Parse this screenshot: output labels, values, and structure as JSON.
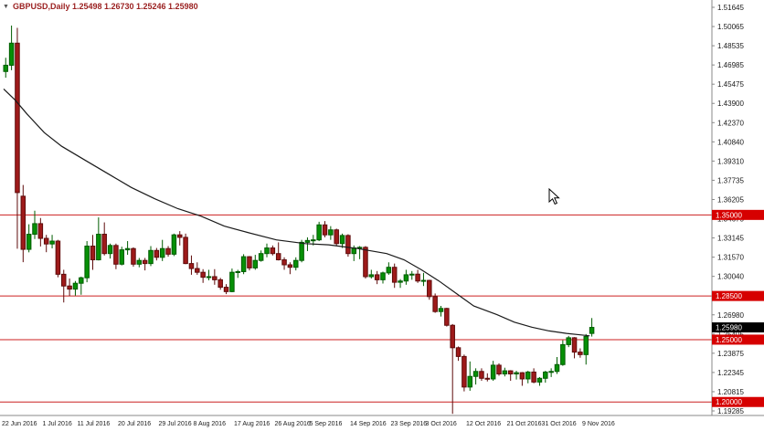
{
  "header": {
    "symbol_line": "GBPUSD,Daily 1.25498 1.26730 1.25246 1.25980",
    "symbol": "GBPUSD",
    "timeframe": "Daily",
    "open": "1.25498",
    "high": "1.26730",
    "low": "1.25246",
    "close": "1.25980"
  },
  "colors": {
    "background": "#ffffff",
    "up": "#005c00",
    "up_fill": "#069006",
    "down": "#5e0b0b",
    "down_fill": "#9e1a1a",
    "ma": "#1a1a1a",
    "level": "#cc2020",
    "level_tag_bg": "#d60000",
    "level_tag_text": "#ffffff",
    "current_tag_bg": "#000000",
    "current_tag_text": "#ffffff",
    "axis_text": "#1a1a1a",
    "separator": "#888888"
  },
  "chart_data": {
    "type": "candlestick",
    "title": "GBPUSD Daily",
    "symbol": "GBPUSD",
    "timeframe": "Daily",
    "grid": false,
    "legend": "none",
    "y_axis": {
      "top_price": 1.51645,
      "bottom_price": 1.19285,
      "labels": [
        "1.51645",
        "1.50065",
        "1.48535",
        "1.46985",
        "1.45475",
        "1.43900",
        "1.42370",
        "1.40840",
        "1.39310",
        "1.37735",
        "1.36205",
        "1.34675",
        "1.33145",
        "1.31570",
        "1.30040",
        "1.28510",
        "1.26980",
        "1.25405",
        "1.23875",
        "1.22345",
        "1.20815",
        "1.19285"
      ]
    },
    "x_axis": {
      "labels": [
        "22 Jun 2016",
        "1 Jul 2016",
        "11 Jul 2016",
        "20 Jul 2016",
        "29 Jul 2016",
        "8 Aug 2016",
        "17 Aug 2016",
        "26 Aug 2016",
        "5 Sep 2016",
        "14 Sep 2016",
        "23 Sep 2016",
        "3 Oct 2016",
        "12 Oct 2016",
        "21 Oct 2016",
        "31 Oct 2016",
        "9 Nov 2016"
      ],
      "indices": [
        0,
        7,
        13,
        20,
        27,
        33,
        40,
        47,
        53,
        60,
        67,
        73,
        80,
        87,
        93,
        100
      ]
    },
    "levels": [
      {
        "price": 1.35,
        "label": "1.35000"
      },
      {
        "price": 1.285,
        "label": "1.28500"
      },
      {
        "price": 1.25,
        "label": "1.25000"
      },
      {
        "price": 1.2,
        "label": "1.20000"
      }
    ],
    "current_price": {
      "price": 1.2598,
      "label": "1.25980"
    },
    "candles": [
      [
        "22 Jun",
        1.465,
        1.476,
        1.46,
        1.47
      ],
      [
        "23 Jun",
        1.47,
        1.5018,
        1.466,
        1.4877
      ],
      [
        "24 Jun",
        1.4877,
        1.5,
        1.3229,
        1.3679
      ],
      [
        "27 Jun",
        1.365,
        1.374,
        1.3121,
        1.3224
      ],
      [
        "28 Jun",
        1.3224,
        1.3425,
        1.32,
        1.3345
      ],
      [
        "29 Jun",
        1.3345,
        1.3534,
        1.3307,
        1.343
      ],
      [
        "30 Jun",
        1.343,
        1.3475,
        1.3247,
        1.3312
      ],
      [
        "1 Jul",
        1.3312,
        1.334,
        1.3201,
        1.3267
      ],
      [
        "4 Jul",
        1.3267,
        1.334,
        1.3232,
        1.329
      ],
      [
        "5 Jul",
        1.329,
        1.33,
        1.3,
        1.3024
      ],
      [
        "6 Jul",
        1.3024,
        1.306,
        1.2798,
        1.293
      ],
      [
        "7 Jul",
        1.293,
        1.299,
        1.285,
        1.2905
      ],
      [
        "8 Jul",
        1.2905,
        1.297,
        1.2853,
        1.2952
      ],
      [
        "11 Jul",
        1.2952,
        1.3005,
        1.286,
        1.2996
      ],
      [
        "12 Jul",
        1.2996,
        1.329,
        1.296,
        1.325
      ],
      [
        "13 Jul",
        1.325,
        1.334,
        1.306,
        1.314
      ],
      [
        "14 Jul",
        1.314,
        1.348,
        1.3135,
        1.3345
      ],
      [
        "15 Jul",
        1.3345,
        1.344,
        1.3175,
        1.319
      ],
      [
        "18 Jul",
        1.319,
        1.327,
        1.315,
        1.3255
      ],
      [
        "19 Jul",
        1.3255,
        1.327,
        1.3065,
        1.3105
      ],
      [
        "20 Jul",
        1.3105,
        1.3245,
        1.3095,
        1.322
      ],
      [
        "21 Jul",
        1.322,
        1.329,
        1.318,
        1.323
      ],
      [
        "22 Jul",
        1.323,
        1.324,
        1.3085,
        1.3105
      ],
      [
        "25 Jul",
        1.3105,
        1.3155,
        1.308,
        1.3135
      ],
      [
        "26 Jul",
        1.3135,
        1.3155,
        1.3055,
        1.311
      ],
      [
        "27 Jul",
        1.311,
        1.325,
        1.309,
        1.3215
      ],
      [
        "28 Jul",
        1.3215,
        1.3235,
        1.3135,
        1.316
      ],
      [
        "29 Jul",
        1.316,
        1.33,
        1.313,
        1.323
      ],
      [
        "1 Aug",
        1.323,
        1.325,
        1.3165,
        1.3185
      ],
      [
        "2 Aug",
        1.3185,
        1.335,
        1.317,
        1.334
      ],
      [
        "3 Aug",
        1.334,
        1.337,
        1.3255,
        1.332
      ],
      [
        "4 Aug",
        1.332,
        1.335,
        1.3105,
        1.311
      ],
      [
        "5 Aug",
        1.311,
        1.3175,
        1.302,
        1.307
      ],
      [
        "8 Aug",
        1.307,
        1.312,
        1.302,
        1.304
      ],
      [
        "9 Aug",
        1.304,
        1.3065,
        1.2955,
        1.3
      ],
      [
        "10 Aug",
        1.3,
        1.306,
        1.2975,
        1.3005
      ],
      [
        "11 Aug",
        1.3005,
        1.3065,
        1.294,
        1.298
      ],
      [
        "12 Aug",
        1.298,
        1.2995,
        1.29,
        1.292
      ],
      [
        "15 Aug",
        1.292,
        1.2945,
        1.2865,
        1.2885
      ],
      [
        "16 Aug",
        1.2885,
        1.307,
        1.288,
        1.304
      ],
      [
        "17 Aug",
        1.304,
        1.306,
        1.2995,
        1.3045
      ],
      [
        "18 Aug",
        1.3045,
        1.3185,
        1.3025,
        1.3165
      ],
      [
        "19 Aug",
        1.3165,
        1.317,
        1.3055,
        1.3075
      ],
      [
        "22 Aug",
        1.3075,
        1.318,
        1.306,
        1.3135
      ],
      [
        "23 Aug",
        1.3135,
        1.3215,
        1.3125,
        1.319
      ],
      [
        "24 Aug",
        1.319,
        1.327,
        1.316,
        1.3235
      ],
      [
        "25 Aug",
        1.3235,
        1.3255,
        1.3175,
        1.319
      ],
      [
        "26 Aug",
        1.319,
        1.328,
        1.3135,
        1.314
      ],
      [
        "29 Aug",
        1.314,
        1.316,
        1.306,
        1.31
      ],
      [
        "30 Aug",
        1.31,
        1.312,
        1.3025,
        1.308
      ],
      [
        "31 Aug",
        1.308,
        1.316,
        1.3055,
        1.3135
      ],
      [
        "1 Sep",
        1.3135,
        1.33,
        1.312,
        1.328
      ],
      [
        "2 Sep",
        1.328,
        1.332,
        1.321,
        1.3295
      ],
      [
        "5 Sep",
        1.3295,
        1.334,
        1.3255,
        1.33
      ],
      [
        "6 Sep",
        1.33,
        1.3445,
        1.329,
        1.342
      ],
      [
        "7 Sep",
        1.342,
        1.345,
        1.332,
        1.334
      ],
      [
        "8 Sep",
        1.334,
        1.341,
        1.33,
        1.338
      ],
      [
        "9 Sep",
        1.338,
        1.339,
        1.325,
        1.327
      ],
      [
        "12 Sep",
        1.327,
        1.335,
        1.3235,
        1.3335
      ],
      [
        "13 Sep",
        1.3335,
        1.3345,
        1.3165,
        1.319
      ],
      [
        "14 Sep",
        1.319,
        1.3255,
        1.313,
        1.3235
      ],
      [
        "15 Sep",
        1.3235,
        1.325,
        1.3145,
        1.324
      ],
      [
        "16 Sep",
        1.324,
        1.325,
        1.299,
        1.3005
      ],
      [
        "19 Sep",
        1.3005,
        1.306,
        1.299,
        1.302
      ],
      [
        "20 Sep",
        1.302,
        1.305,
        1.2945,
        1.298
      ],
      [
        "21 Sep",
        1.298,
        1.3045,
        1.295,
        1.3035
      ],
      [
        "22 Sep",
        1.3035,
        1.312,
        1.302,
        1.308
      ],
      [
        "23 Sep",
        1.308,
        1.311,
        1.2915,
        1.296
      ],
      [
        "26 Sep",
        1.296,
        1.2985,
        1.2915,
        1.297
      ],
      [
        "27 Sep",
        1.297,
        1.306,
        1.294,
        1.302
      ],
      [
        "28 Sep",
        1.302,
        1.305,
        1.298,
        1.3025
      ],
      [
        "29 Sep",
        1.3025,
        1.306,
        1.2955,
        1.297
      ],
      [
        "30 Sep",
        1.297,
        1.3035,
        1.293,
        1.2975
      ],
      [
        "3 Oct",
        1.2975,
        1.298,
        1.282,
        1.2845
      ],
      [
        "4 Oct",
        1.2845,
        1.287,
        1.2715,
        1.2725
      ],
      [
        "5 Oct",
        1.2725,
        1.277,
        1.2685,
        1.275
      ],
      [
        "6 Oct",
        1.275,
        1.2755,
        1.2605,
        1.2615
      ],
      [
        "7 Oct",
        1.2615,
        1.2625,
        1.1905,
        1.2435
      ],
      [
        "10 Oct",
        1.2435,
        1.2445,
        1.233,
        1.2365
      ],
      [
        "11 Oct",
        1.2365,
        1.238,
        1.2085,
        1.212
      ],
      [
        "12 Oct",
        1.212,
        1.2325,
        1.209,
        1.2205
      ],
      [
        "13 Oct",
        1.2205,
        1.227,
        1.214,
        1.2245
      ],
      [
        "14 Oct",
        1.2245,
        1.227,
        1.217,
        1.219
      ],
      [
        "17 Oct",
        1.219,
        1.223,
        1.2165,
        1.2185
      ],
      [
        "18 Oct",
        1.2185,
        1.233,
        1.217,
        1.2295
      ],
      [
        "19 Oct",
        1.2295,
        1.231,
        1.221,
        1.2225
      ],
      [
        "20 Oct",
        1.2225,
        1.2275,
        1.2205,
        1.225
      ],
      [
        "21 Oct",
        1.225,
        1.2255,
        1.217,
        1.2225
      ],
      [
        "24 Oct",
        1.2225,
        1.225,
        1.218,
        1.2235
      ],
      [
        "25 Oct",
        1.2235,
        1.224,
        1.213,
        1.2185
      ],
      [
        "26 Oct",
        1.2185,
        1.225,
        1.215,
        1.224
      ],
      [
        "27 Oct",
        1.224,
        1.227,
        1.215,
        1.216
      ],
      [
        "28 Oct",
        1.216,
        1.22,
        1.213,
        1.219
      ],
      [
        "31 Oct",
        1.219,
        1.225,
        1.2155,
        1.224
      ],
      [
        "1 Nov",
        1.224,
        1.227,
        1.22,
        1.2245
      ],
      [
        "2 Nov",
        1.2245,
        1.236,
        1.2225,
        1.23
      ],
      [
        "3 Nov",
        1.23,
        1.2495,
        1.229,
        1.246
      ],
      [
        "4 Nov",
        1.246,
        1.253,
        1.244,
        1.2515
      ],
      [
        "7 Nov",
        1.2515,
        1.252,
        1.235,
        1.24
      ],
      [
        "8 Nov",
        1.24,
        1.243,
        1.2355,
        1.238
      ],
      [
        "9 Nov",
        1.238,
        1.2545,
        1.23,
        1.2525
      ],
      [
        "10 Nov",
        1.25498,
        1.2673,
        1.25246,
        1.2598
      ]
    ],
    "moving_average": [
      [
        0,
        1.451
      ],
      [
        2,
        1.442
      ],
      [
        4,
        1.431
      ],
      [
        7,
        1.416
      ],
      [
        10,
        1.405
      ],
      [
        14,
        1.394
      ],
      [
        18,
        1.383
      ],
      [
        22,
        1.372
      ],
      [
        26,
        1.363
      ],
      [
        30,
        1.355
      ],
      [
        34,
        1.349
      ],
      [
        38,
        1.341
      ],
      [
        42,
        1.336
      ],
      [
        47,
        1.33
      ],
      [
        52,
        1.327
      ],
      [
        56,
        1.326
      ],
      [
        61,
        1.323
      ],
      [
        66,
        1.319
      ],
      [
        69,
        1.314
      ],
      [
        72,
        1.306
      ],
      [
        75,
        1.297
      ],
      [
        78,
        1.287
      ],
      [
        81,
        1.277
      ],
      [
        85,
        1.27
      ],
      [
        88,
        1.264
      ],
      [
        91,
        1.26
      ],
      [
        94,
        1.257
      ],
      [
        97,
        1.255
      ],
      [
        101,
        1.253
      ]
    ]
  },
  "icons": {
    "symbol_marker": "▼"
  }
}
